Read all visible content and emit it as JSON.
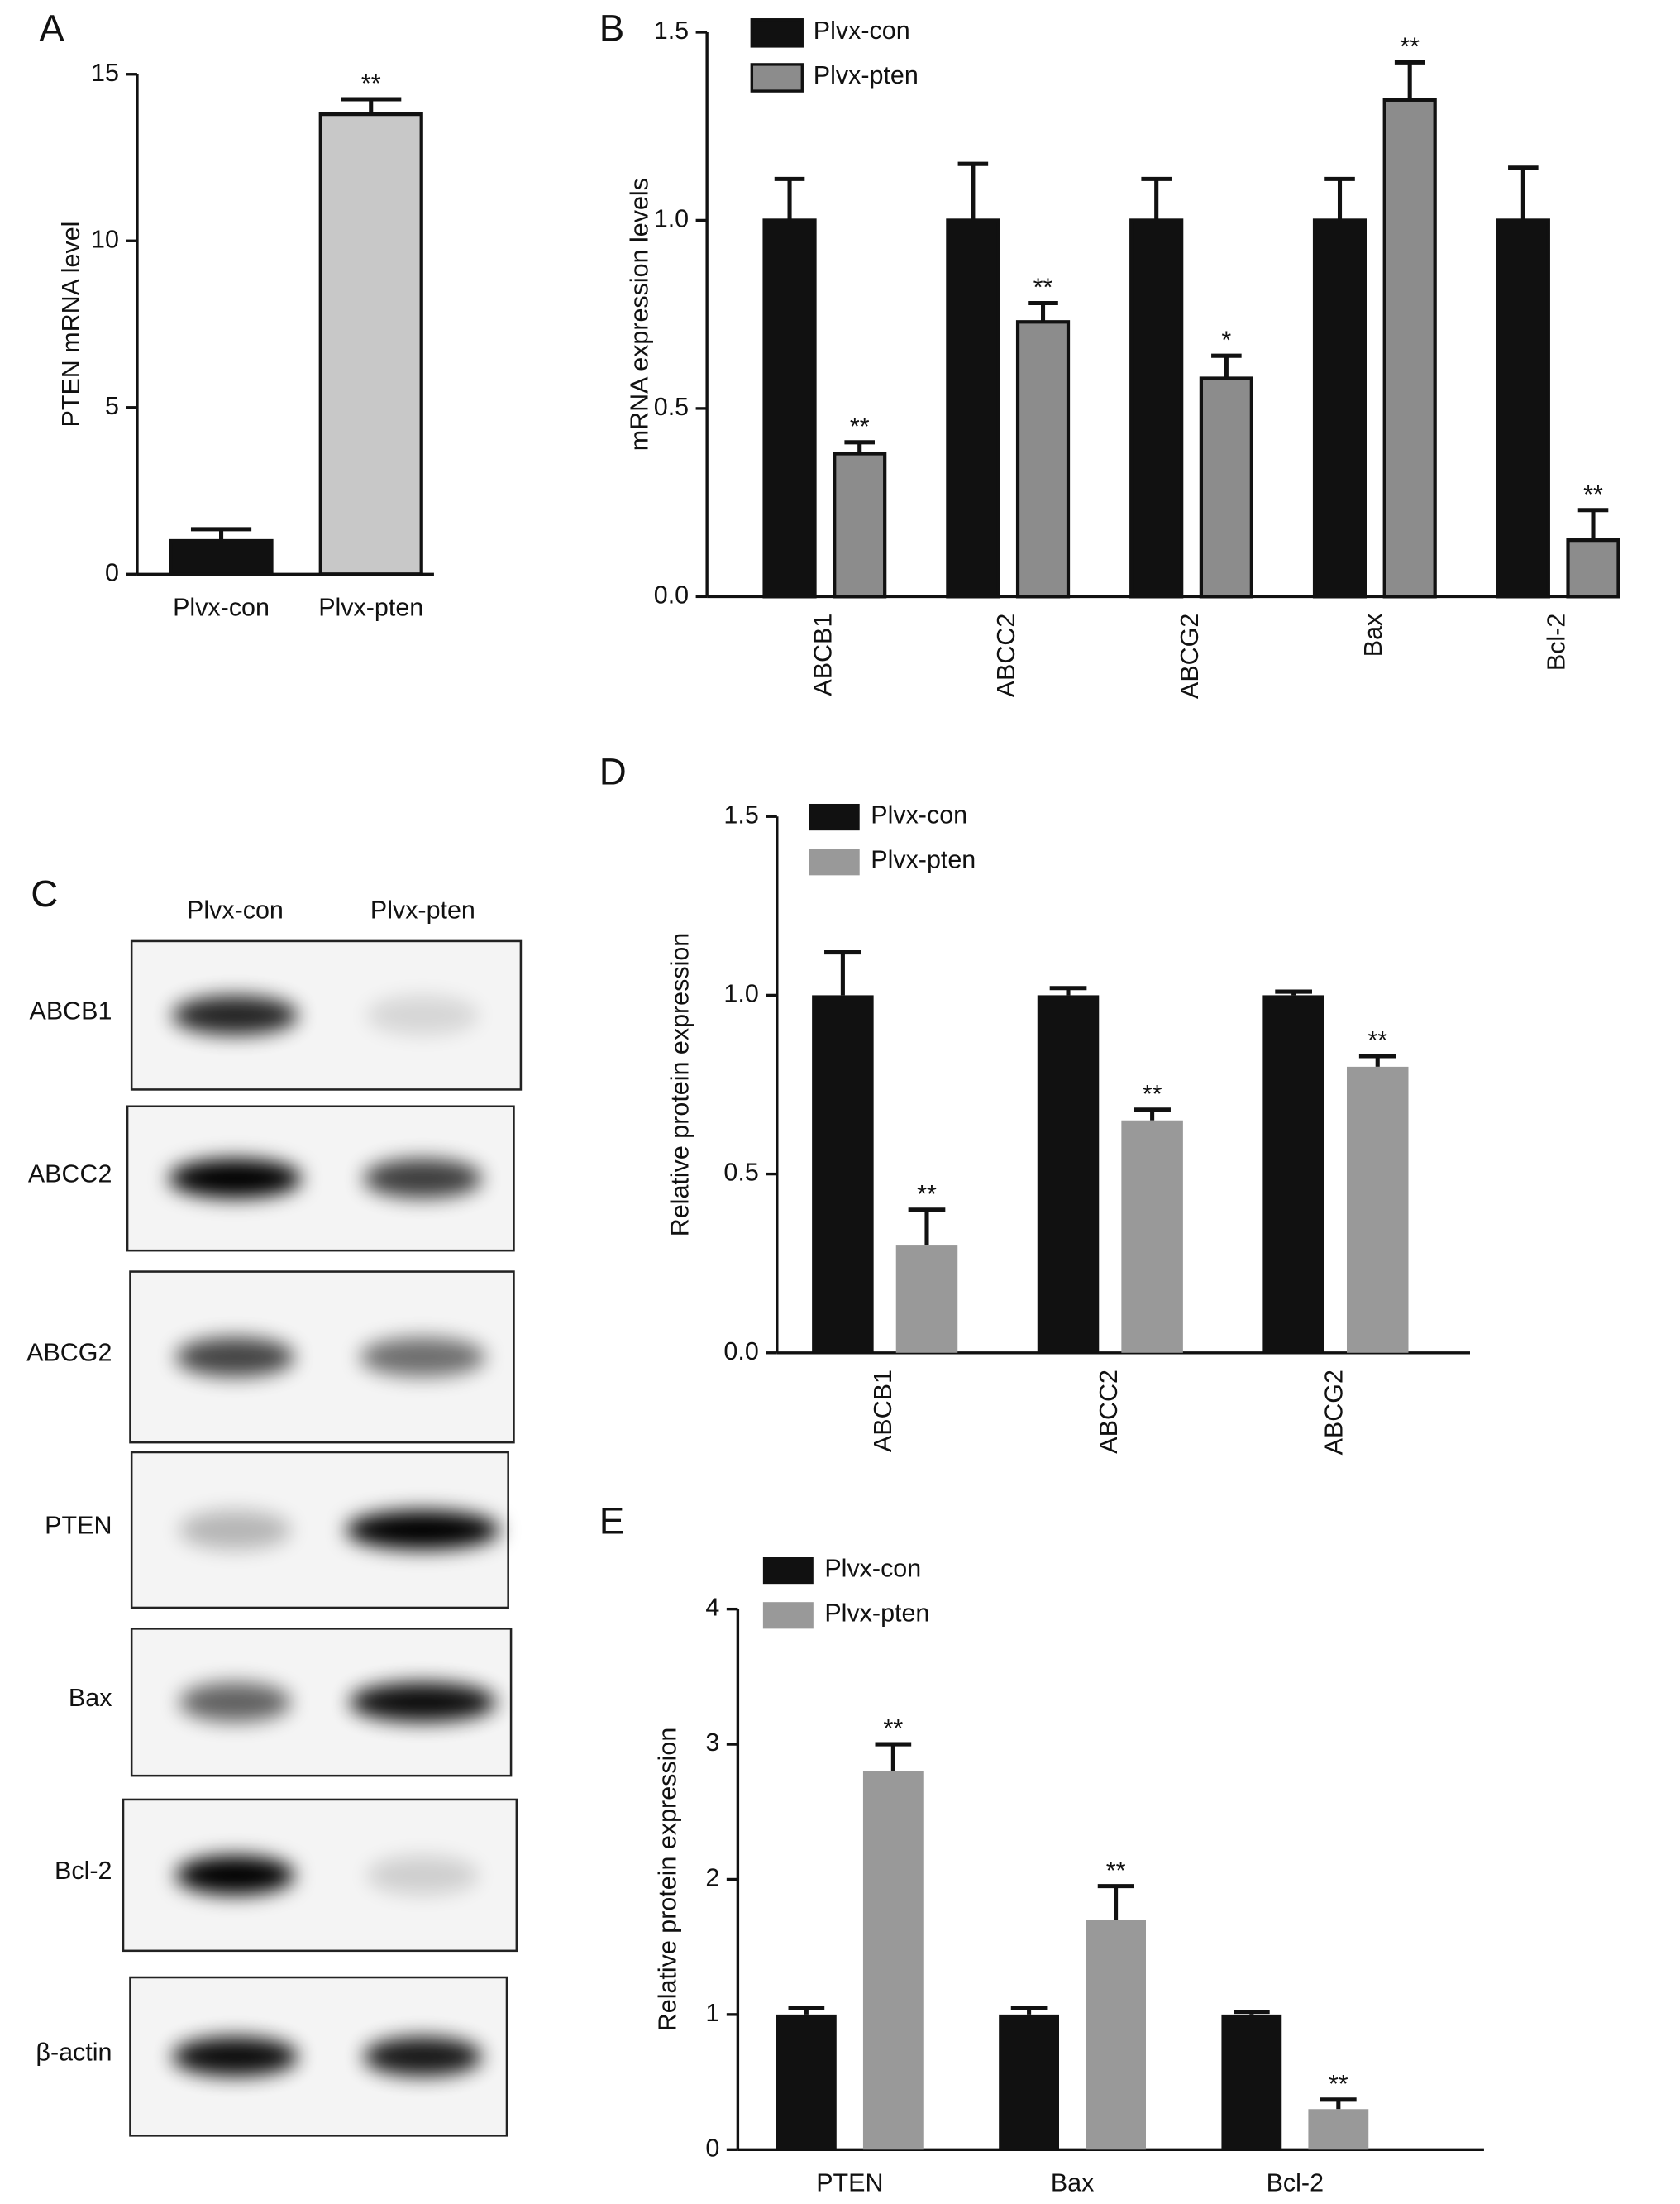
{
  "chart_data": [
    {
      "type": "bar",
      "label": "A",
      "ylabel": "PTEN mRNA level",
      "categories": [
        "Plvx-con",
        "Plvx-pten"
      ],
      "values": [
        1.0,
        13.8
      ],
      "errors": [
        0.35,
        0.45
      ],
      "colors": [
        "#111111",
        "#c8c8c8"
      ],
      "annotations": [
        null,
        "**"
      ],
      "ylim": [
        0,
        15
      ],
      "yticks": [
        0,
        5,
        10,
        15
      ],
      "bar_outline": true
    },
    {
      "type": "bar",
      "label": "B",
      "ylabel": "mRNA expression levels",
      "categories": [
        "ABCB1",
        "ABCC2",
        "ABCG2",
        "Bax",
        "Bcl-2"
      ],
      "series": [
        {
          "name": "Plvx-con",
          "color": "#111111",
          "values": [
            1.0,
            1.0,
            1.0,
            1.0,
            1.0
          ],
          "errors": [
            0.11,
            0.15,
            0.11,
            0.11,
            0.14
          ]
        },
        {
          "name": "Plvx-pten",
          "color": "#8c8c8c",
          "values": [
            0.38,
            0.73,
            0.58,
            1.32,
            0.15
          ],
          "errors": [
            0.03,
            0.05,
            0.06,
            0.1,
            0.08
          ],
          "annotations": [
            "**",
            "**",
            "*",
            "**",
            "**"
          ]
        }
      ],
      "ylim": [
        0,
        1.5
      ],
      "yticks": [
        {
          "value": 0,
          "label": "0.0"
        },
        {
          "value": 0.5,
          "label": "0.5"
        },
        {
          "value": 1,
          "label": "1.0"
        },
        {
          "value": 1.5,
          "label": "1.5"
        }
      ],
      "xtick_rotation": 90,
      "bar_outline": true,
      "legend": "top-left"
    },
    {
      "type": "bar",
      "label": "D",
      "ylabel": "Relative protein expression",
      "categories": [
        "ABCB1",
        "ABCC2",
        "ABCG2"
      ],
      "series": [
        {
          "name": "Plvx-con",
          "color": "#111111",
          "values": [
            1.0,
            1.0,
            1.0
          ],
          "errors": [
            0.12,
            0.02,
            0.01
          ]
        },
        {
          "name": "Plvx-pten",
          "color": "#999999",
          "values": [
            0.3,
            0.65,
            0.8
          ],
          "errors": [
            0.1,
            0.03,
            0.03
          ],
          "annotations": [
            "**",
            "**",
            "**"
          ]
        }
      ],
      "ylim": [
        0,
        1.5
      ],
      "yticks": [
        {
          "value": 0,
          "label": "0.0"
        },
        {
          "value": 0.5,
          "label": "0.5"
        },
        {
          "value": 1,
          "label": "1.0"
        },
        {
          "value": 1.5,
          "label": "1.5"
        }
      ],
      "xtick_rotation": 90,
      "bar_outline": false,
      "legend": "top-left"
    },
    {
      "type": "bar",
      "label": "E",
      "ylabel": "Relative protein expression",
      "categories": [
        "PTEN",
        "Bax",
        "Bcl-2"
      ],
      "series": [
        {
          "name": "Plvx-con",
          "color": "#111111",
          "values": [
            1.0,
            1.0,
            1.0
          ],
          "errors": [
            0.05,
            0.05,
            0.02
          ]
        },
        {
          "name": "Plvx-pten",
          "color": "#999999",
          "values": [
            2.8,
            1.7,
            0.3
          ],
          "errors": [
            0.2,
            0.25,
            0.07
          ],
          "annotations": [
            "**",
            "**",
            "**"
          ]
        }
      ],
      "ylim": [
        0,
        4
      ],
      "yticks": [
        0,
        1,
        2,
        3,
        4
      ],
      "xtick_rotation": 0,
      "bar_outline": false,
      "legend": "top-left"
    }
  ],
  "blot": {
    "label": "C",
    "columns": [
      "Plvx-con",
      "Plvx-pten"
    ],
    "rows": [
      "ABCB1",
      "ABCC2",
      "ABCG2",
      "PTEN",
      "Bax",
      "Bcl-2",
      "β-actin"
    ]
  }
}
